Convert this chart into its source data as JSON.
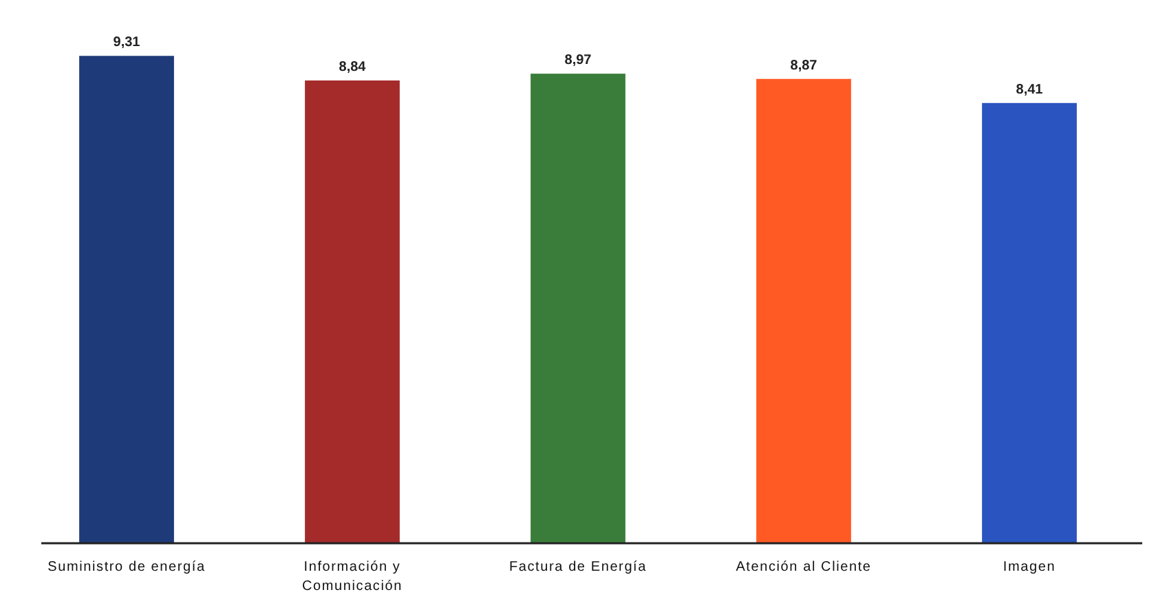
{
  "chart_data": {
    "type": "bar",
    "categories": [
      "Suministro de energía",
      "Información y Comunicación",
      "Factura de Energía",
      "Atención al Cliente",
      "Imagen"
    ],
    "values": [
      9.31,
      8.84,
      8.97,
      8.87,
      8.41
    ],
    "colors": [
      "#1f3a78",
      "#a52a2a",
      "#3a7d3a",
      "#ff5a24",
      "#2a55c0"
    ],
    "value_labels": [
      "9,31",
      "8,84",
      "8,97",
      "8,87",
      "8,41"
    ],
    "tick_labels": "x"
  }
}
